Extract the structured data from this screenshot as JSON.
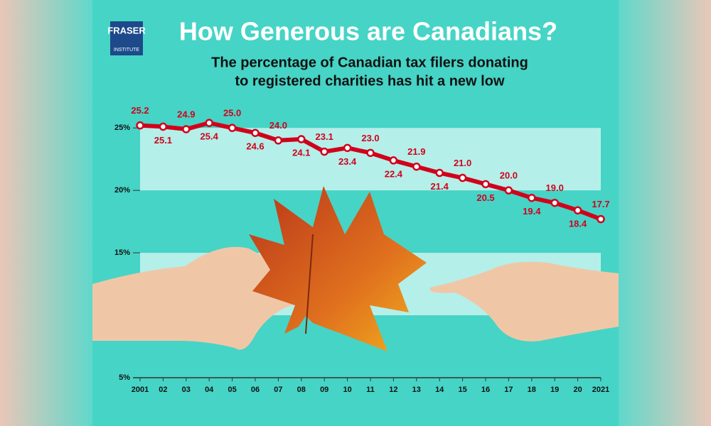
{
  "logo": {
    "name": "FRASER",
    "sub": "INSTITUTE"
  },
  "chart_data": {
    "type": "line",
    "title": "How Generous are Canadians?",
    "subtitle": [
      "The percentage of Canadian tax filers donating",
      "to registered charities has hit a new low"
    ],
    "categories": [
      "2001",
      "02",
      "03",
      "04",
      "05",
      "06",
      "07",
      "08",
      "09",
      "10",
      "11",
      "12",
      "13",
      "14",
      "15",
      "16",
      "17",
      "18",
      "19",
      "20",
      "2021"
    ],
    "values": [
      25.2,
      25.1,
      24.9,
      25.4,
      25.0,
      24.6,
      24.0,
      24.1,
      23.1,
      23.4,
      23.0,
      22.4,
      21.9,
      21.4,
      21.0,
      20.5,
      20.0,
      19.4,
      19.0,
      18.4,
      17.7
    ],
    "value_labels": [
      "25.2",
      "25.1",
      "24.9",
      "25.4",
      "25.0",
      "24.6",
      "24.0",
      "24.1",
      "23.1",
      "23.4",
      "23.0",
      "22.4",
      "21.9",
      "21.4",
      "21.0",
      "20.5",
      "20.0",
      "19.4",
      "19.0",
      "18.4",
      "17.7"
    ],
    "color": "#d0021b",
    "ylim": [
      5,
      27
    ],
    "yticks": [
      {
        "value": 5,
        "label": "5%"
      },
      {
        "value": 15,
        "label": "15%"
      },
      {
        "value": 20,
        "label": "20%"
      },
      {
        "value": 25,
        "label": "25%"
      }
    ]
  }
}
